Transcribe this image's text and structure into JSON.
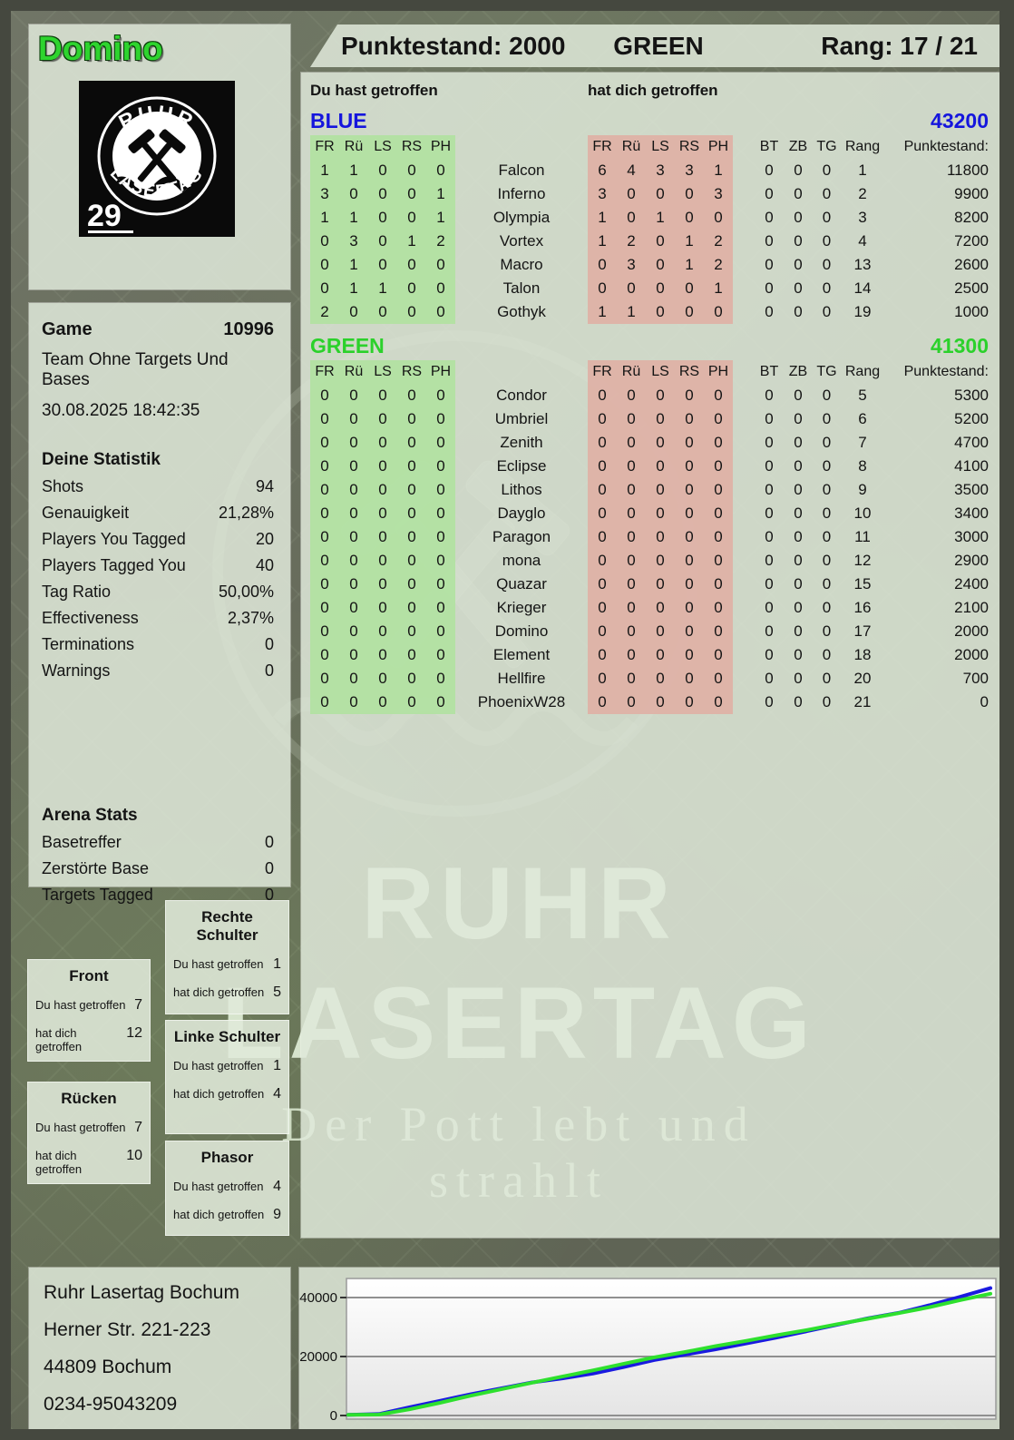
{
  "player": {
    "name": "Domino",
    "pack_number": "29",
    "logo_text_top": "RUHR",
    "logo_text_bottom": "LASERTAG"
  },
  "header": {
    "punktestand": "Punktestand: 2000",
    "team": "GREEN",
    "rang": "Rang: 17 / 21"
  },
  "columns": {
    "you_hit": "Du hast getroffen",
    "hit_you": "hat dich getroffen",
    "hit_cols": [
      "FR",
      "Rü",
      "LS",
      "RS",
      "PH"
    ],
    "extra_cols": [
      "BT",
      "ZB",
      "TG",
      "Rang",
      "Punktestand:"
    ]
  },
  "teams": [
    {
      "name": "BLUE",
      "color": "#1515dd",
      "total": "43200",
      "rows": [
        {
          "name": "Falcon",
          "you": [
            "1",
            "1",
            "0",
            "0",
            "0"
          ],
          "them": [
            "6",
            "4",
            "3",
            "3",
            "1"
          ],
          "bt": "0",
          "zb": "0",
          "tg": "0",
          "rang": "1",
          "score": "11800"
        },
        {
          "name": "Inferno",
          "you": [
            "3",
            "0",
            "0",
            "0",
            "1"
          ],
          "them": [
            "3",
            "0",
            "0",
            "0",
            "3"
          ],
          "bt": "0",
          "zb": "0",
          "tg": "0",
          "rang": "2",
          "score": "9900"
        },
        {
          "name": "Olympia",
          "you": [
            "1",
            "1",
            "0",
            "0",
            "1"
          ],
          "them": [
            "1",
            "0",
            "1",
            "0",
            "0"
          ],
          "bt": "0",
          "zb": "0",
          "tg": "0",
          "rang": "3",
          "score": "8200"
        },
        {
          "name": "Vortex",
          "you": [
            "0",
            "3",
            "0",
            "1",
            "2"
          ],
          "them": [
            "1",
            "2",
            "0",
            "1",
            "2"
          ],
          "bt": "0",
          "zb": "0",
          "tg": "0",
          "rang": "4",
          "score": "7200"
        },
        {
          "name": "Macro",
          "you": [
            "0",
            "1",
            "0",
            "0",
            "0"
          ],
          "them": [
            "0",
            "3",
            "0",
            "1",
            "2"
          ],
          "bt": "0",
          "zb": "0",
          "tg": "0",
          "rang": "13",
          "score": "2600"
        },
        {
          "name": "Talon",
          "you": [
            "0",
            "1",
            "1",
            "0",
            "0"
          ],
          "them": [
            "0",
            "0",
            "0",
            "0",
            "1"
          ],
          "bt": "0",
          "zb": "0",
          "tg": "0",
          "rang": "14",
          "score": "2500"
        },
        {
          "name": "Gothyk",
          "you": [
            "2",
            "0",
            "0",
            "0",
            "0"
          ],
          "them": [
            "1",
            "1",
            "0",
            "0",
            "0"
          ],
          "bt": "0",
          "zb": "0",
          "tg": "0",
          "rang": "19",
          "score": "1000"
        }
      ]
    },
    {
      "name": "GREEN",
      "color": "#2bd12b",
      "total": "41300",
      "rows": [
        {
          "name": "Condor",
          "you": [
            "0",
            "0",
            "0",
            "0",
            "0"
          ],
          "them": [
            "0",
            "0",
            "0",
            "0",
            "0"
          ],
          "bt": "0",
          "zb": "0",
          "tg": "0",
          "rang": "5",
          "score": "5300"
        },
        {
          "name": "Umbriel",
          "you": [
            "0",
            "0",
            "0",
            "0",
            "0"
          ],
          "them": [
            "0",
            "0",
            "0",
            "0",
            "0"
          ],
          "bt": "0",
          "zb": "0",
          "tg": "0",
          "rang": "6",
          "score": "5200"
        },
        {
          "name": "Zenith",
          "you": [
            "0",
            "0",
            "0",
            "0",
            "0"
          ],
          "them": [
            "0",
            "0",
            "0",
            "0",
            "0"
          ],
          "bt": "0",
          "zb": "0",
          "tg": "0",
          "rang": "7",
          "score": "4700"
        },
        {
          "name": "Eclipse",
          "you": [
            "0",
            "0",
            "0",
            "0",
            "0"
          ],
          "them": [
            "0",
            "0",
            "0",
            "0",
            "0"
          ],
          "bt": "0",
          "zb": "0",
          "tg": "0",
          "rang": "8",
          "score": "4100"
        },
        {
          "name": "Lithos",
          "you": [
            "0",
            "0",
            "0",
            "0",
            "0"
          ],
          "them": [
            "0",
            "0",
            "0",
            "0",
            "0"
          ],
          "bt": "0",
          "zb": "0",
          "tg": "0",
          "rang": "9",
          "score": "3500"
        },
        {
          "name": "Dayglo",
          "you": [
            "0",
            "0",
            "0",
            "0",
            "0"
          ],
          "them": [
            "0",
            "0",
            "0",
            "0",
            "0"
          ],
          "bt": "0",
          "zb": "0",
          "tg": "0",
          "rang": "10",
          "score": "3400"
        },
        {
          "name": "Paragon",
          "you": [
            "0",
            "0",
            "0",
            "0",
            "0"
          ],
          "them": [
            "0",
            "0",
            "0",
            "0",
            "0"
          ],
          "bt": "0",
          "zb": "0",
          "tg": "0",
          "rang": "11",
          "score": "3000"
        },
        {
          "name": "mona",
          "you": [
            "0",
            "0",
            "0",
            "0",
            "0"
          ],
          "them": [
            "0",
            "0",
            "0",
            "0",
            "0"
          ],
          "bt": "0",
          "zb": "0",
          "tg": "0",
          "rang": "12",
          "score": "2900"
        },
        {
          "name": "Quazar",
          "you": [
            "0",
            "0",
            "0",
            "0",
            "0"
          ],
          "them": [
            "0",
            "0",
            "0",
            "0",
            "0"
          ],
          "bt": "0",
          "zb": "0",
          "tg": "0",
          "rang": "15",
          "score": "2400"
        },
        {
          "name": "Krieger",
          "you": [
            "0",
            "0",
            "0",
            "0",
            "0"
          ],
          "them": [
            "0",
            "0",
            "0",
            "0",
            "0"
          ],
          "bt": "0",
          "zb": "0",
          "tg": "0",
          "rang": "16",
          "score": "2100"
        },
        {
          "name": "Domino",
          "you": [
            "0",
            "0",
            "0",
            "0",
            "0"
          ],
          "them": [
            "0",
            "0",
            "0",
            "0",
            "0"
          ],
          "bt": "0",
          "zb": "0",
          "tg": "0",
          "rang": "17",
          "score": "2000"
        },
        {
          "name": "Element",
          "you": [
            "0",
            "0",
            "0",
            "0",
            "0"
          ],
          "them": [
            "0",
            "0",
            "0",
            "0",
            "0"
          ],
          "bt": "0",
          "zb": "0",
          "tg": "0",
          "rang": "18",
          "score": "2000"
        },
        {
          "name": "Hellfire",
          "you": [
            "0",
            "0",
            "0",
            "0",
            "0"
          ],
          "them": [
            "0",
            "0",
            "0",
            "0",
            "0"
          ],
          "bt": "0",
          "zb": "0",
          "tg": "0",
          "rang": "20",
          "score": "700"
        },
        {
          "name": "PhoenixW28",
          "you": [
            "0",
            "0",
            "0",
            "0",
            "0"
          ],
          "them": [
            "0",
            "0",
            "0",
            "0",
            "0"
          ],
          "bt": "0",
          "zb": "0",
          "tg": "0",
          "rang": "21",
          "score": "0"
        }
      ]
    }
  ],
  "game_info": {
    "label": "Game",
    "number": "10996",
    "mode": "Team Ohne Targets Und Bases",
    "datetime": "30.08.2025 18:42:35"
  },
  "your_stats": {
    "title": "Deine Statistik",
    "rows": [
      [
        "Shots",
        "94"
      ],
      [
        "Genauigkeit",
        "21,28%"
      ],
      [
        "Players You Tagged",
        "20"
      ],
      [
        "Players Tagged You",
        "40"
      ],
      [
        "Tag Ratio",
        "50,00%"
      ],
      [
        "Effectiveness",
        "2,37%"
      ],
      [
        "Terminations",
        "0"
      ],
      [
        "Warnings",
        "0"
      ]
    ]
  },
  "arena_stats": {
    "title": "Arena Stats",
    "rows": [
      [
        "Basetreffer",
        "0"
      ],
      [
        "Zerstörte Base",
        "0"
      ],
      [
        "Targets Tagged",
        "0"
      ]
    ]
  },
  "body_parts": {
    "you_label": "Du hast getroffen",
    "them_label": "hat dich getroffen",
    "boxes": [
      {
        "title": "Front",
        "you": "7",
        "them": "12"
      },
      {
        "title": "Rücken",
        "you": "7",
        "them": "10"
      },
      {
        "title": "Rechte Schulter",
        "you": "1",
        "them": "5"
      },
      {
        "title": "Linke Schulter",
        "you": "1",
        "them": "4"
      },
      {
        "title": "Phasor",
        "you": "4",
        "them": "9"
      }
    ]
  },
  "address": {
    "lines": [
      "Ruhr Lasertag Bochum",
      "Herner Str. 221-223",
      "44809 Bochum",
      "0234-95043209"
    ]
  },
  "watermark": {
    "line1": "RUHR",
    "line2": "LASERTAG",
    "tagline": "Der Pott lebt und strahlt"
  },
  "chart_data": {
    "type": "line",
    "title": "",
    "xlabel": "",
    "ylabel": "",
    "ylim": [
      0,
      46000
    ],
    "yticks": [
      0,
      20000,
      40000
    ],
    "grid": true,
    "legend_position": "none",
    "series": [
      {
        "name": "BLUE",
        "color": "#1a1ae0",
        "values": [
          200,
          500,
          2800,
          5000,
          7200,
          9200,
          11200,
          12600,
          14200,
          16400,
          18800,
          20600,
          22400,
          24400,
          26400,
          28600,
          30800,
          33000,
          34800,
          37400,
          40200,
          43200
        ]
      },
      {
        "name": "GREEN",
        "color": "#2ee02e",
        "values": [
          200,
          300,
          2100,
          4300,
          6700,
          8900,
          11100,
          13200,
          15300,
          17500,
          19700,
          21500,
          23500,
          25300,
          27200,
          29000,
          31000,
          32800,
          34700,
          36700,
          39100,
          41300
        ]
      }
    ]
  }
}
